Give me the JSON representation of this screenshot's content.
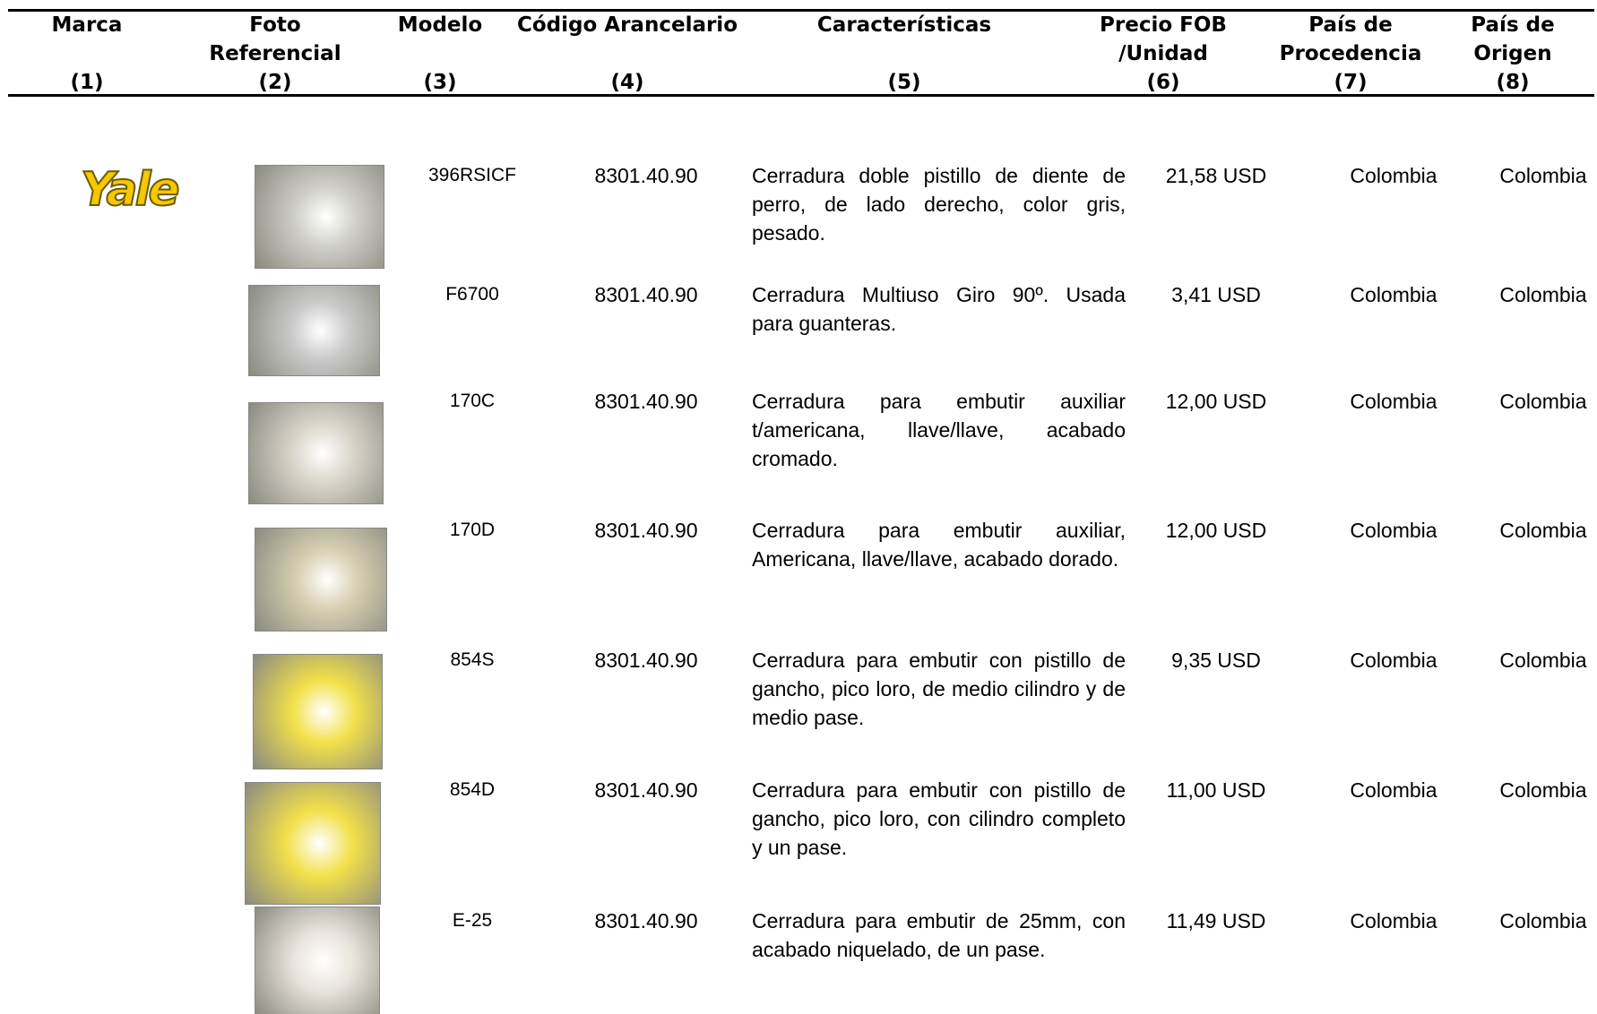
{
  "table": {
    "columns": [
      {
        "lines": [
          "Marca"
        ],
        "number": "(1)"
      },
      {
        "lines": [
          "Foto",
          "Referencial"
        ],
        "number": "(2)"
      },
      {
        "lines": [
          "Modelo"
        ],
        "number": "(3)"
      },
      {
        "lines": [
          "Código Arancelario"
        ],
        "number": "(4)"
      },
      {
        "lines": [
          "Características"
        ],
        "number": "(5)"
      },
      {
        "lines": [
          "Precio FOB",
          "/Unidad"
        ],
        "number": "(6)"
      },
      {
        "lines": [
          "País de",
          "Procedencia"
        ],
        "number": "(7)"
      },
      {
        "lines": [
          "País de",
          "Origen"
        ],
        "number": "(8)"
      }
    ],
    "brand": "Yale",
    "rows": [
      {
        "model": "396RSICF",
        "code": "8301.40.90",
        "description": "Cerradura doble pistillo de diente de perro, de lado derecho, color gris, pesado.",
        "price": "21,58 USD",
        "procedencia": "Colombia",
        "origen": "Colombia"
      },
      {
        "model": "F6700",
        "code": "8301.40.90",
        "description": "Cerradura Multiuso Giro 90º. Usada para guanteras.",
        "price": "3,41 USD",
        "procedencia": "Colombia",
        "origen": "Colombia"
      },
      {
        "model": "170C",
        "code": "8301.40.90",
        "description": "Cerradura para embutir auxiliar t/americana, llave/llave, acabado cromado.",
        "price": "12,00 USD",
        "procedencia": "Colombia",
        "origen": "Colombia"
      },
      {
        "model": "170D",
        "code": "8301.40.90",
        "description": "Cerradura para embutir auxiliar, Americana, llave/llave, acabado dorado.",
        "price": "12,00 USD",
        "procedencia": "Colombia",
        "origen": "Colombia"
      },
      {
        "model": "854S",
        "code": "8301.40.90",
        "description": "Cerradura para embutir con pistillo de gancho, pico loro, de medio cilindro y de medio pase.",
        "price": "9,35 USD",
        "procedencia": "Colombia",
        "origen": "Colombia"
      },
      {
        "model": "854D",
        "code": "8301.40.90",
        "description": "Cerradura para embutir con pistillo de gancho, pico loro, con cilindro completo y un pase.",
        "price": "11,00 USD",
        "procedencia": "Colombia",
        "origen": "Colombia"
      },
      {
        "model": "E-25",
        "code": "8301.40.90",
        "description": "Cerradura para embutir de 25mm, con acabado niquelado, de un pase.",
        "price": "11,49 USD",
        "procedencia": "Colombia",
        "origen": "Colombia"
      }
    ]
  }
}
